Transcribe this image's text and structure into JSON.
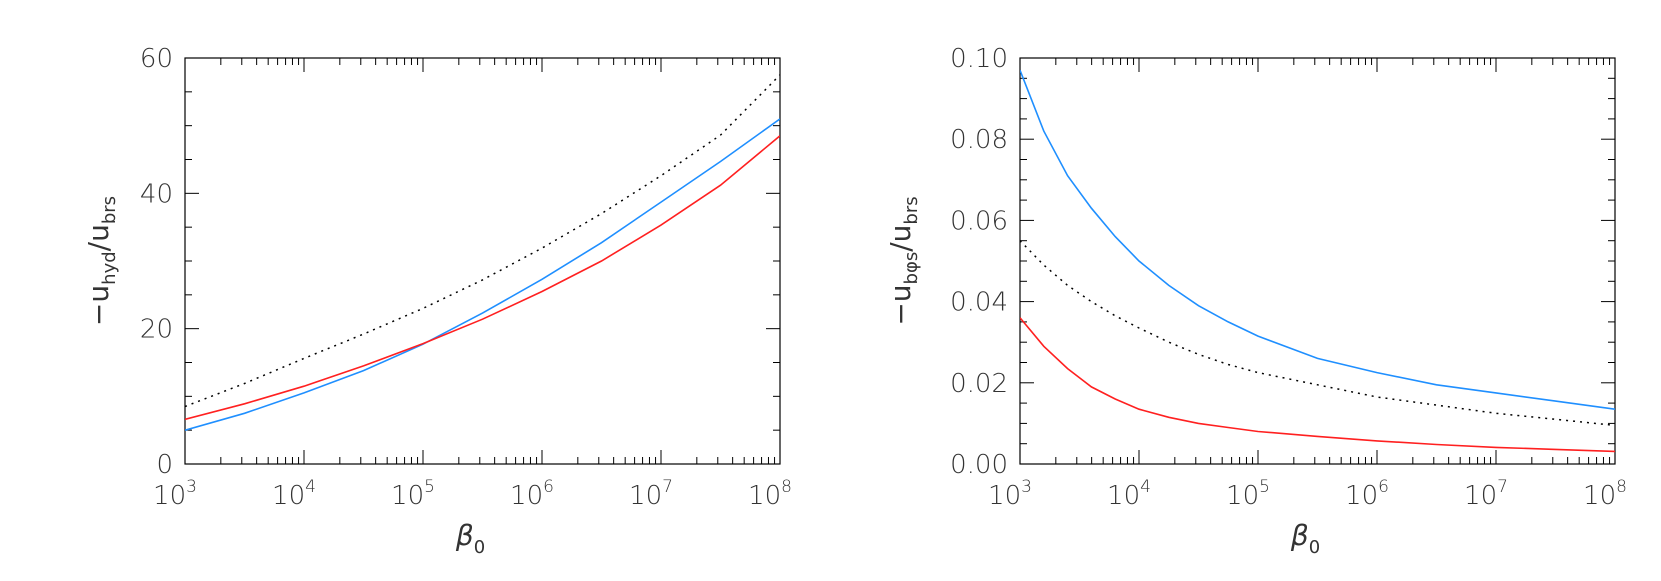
{
  "chart_data": [
    {
      "type": "line",
      "xscale": "log",
      "xlim": [
        1000,
        100000000
      ],
      "ylim": [
        0,
        60
      ],
      "xlabel": "β0",
      "ylabel": "−uhyd/ubrs",
      "x_tick_labels": [
        "10^3",
        "10^4",
        "10^5",
        "10^6",
        "10^7",
        "10^8"
      ],
      "x_tick_bases": [
        "10",
        "10",
        "10",
        "10",
        "10",
        "10"
      ],
      "x_tick_exps": [
        "3",
        "4",
        "5",
        "6",
        "7",
        "8"
      ],
      "y_ticks": [
        0,
        20,
        40,
        60
      ],
      "y_tick_labels": [
        "0",
        "20",
        "40",
        "60"
      ],
      "grid": false,
      "series": [
        {
          "color": "#000000",
          "style": "dotted",
          "x": [
            1000,
            3162,
            10000,
            31623,
            100000,
            316228,
            1000000,
            3162278,
            10000000,
            31622777,
            100000000
          ],
          "values": [
            8.5,
            11.9,
            15.6,
            19.2,
            23.0,
            27.2,
            31.9,
            37.0,
            42.6,
            48.6,
            57.5
          ]
        },
        {
          "color": "#1f8fff",
          "style": "solid",
          "x": [
            1000,
            3162,
            10000,
            31623,
            100000,
            316228,
            1000000,
            3162278,
            10000000,
            31622777,
            100000000
          ],
          "values": [
            5.0,
            7.5,
            10.5,
            13.8,
            17.7,
            22.3,
            27.3,
            32.7,
            38.7,
            44.7,
            51.0
          ]
        },
        {
          "color": "#ff2020",
          "style": "solid",
          "x": [
            1000,
            3162,
            10000,
            31623,
            100000,
            316228,
            1000000,
            3162278,
            10000000,
            31622777,
            100000000
          ],
          "values": [
            6.6,
            8.9,
            11.5,
            14.5,
            17.8,
            21.4,
            25.5,
            30.0,
            35.3,
            41.2,
            48.5
          ]
        }
      ]
    },
    {
      "type": "line",
      "xscale": "log",
      "xlim": [
        1000,
        100000000
      ],
      "ylim": [
        0,
        0.1
      ],
      "xlabel": "β0",
      "ylabel": "−ubφs/ubrs",
      "x_tick_labels": [
        "10^3",
        "10^4",
        "10^5",
        "10^6",
        "10^7",
        "10^8"
      ],
      "x_tick_bases": [
        "10",
        "10",
        "10",
        "10",
        "10",
        "10"
      ],
      "x_tick_exps": [
        "3",
        "4",
        "5",
        "6",
        "7",
        "8"
      ],
      "y_ticks": [
        0,
        0.02,
        0.04,
        0.06,
        0.08,
        0.1
      ],
      "y_tick_labels": [
        "0.00",
        "0.02",
        "0.04",
        "0.06",
        "0.08",
        "0.10"
      ],
      "grid": false,
      "series": [
        {
          "color": "#1f8fff",
          "style": "solid",
          "x": [
            1000,
            1585,
            2512,
            3981,
            6310,
            10000,
            17783,
            31623,
            56234,
            100000,
            316228,
            1000000,
            3162278,
            10000000,
            31622777,
            100000000
          ],
          "values": [
            0.097,
            0.082,
            0.071,
            0.063,
            0.056,
            0.05,
            0.044,
            0.039,
            0.035,
            0.0315,
            0.026,
            0.0225,
            0.0195,
            0.0175,
            0.0155,
            0.0135
          ]
        },
        {
          "color": "#000000",
          "style": "dotted",
          "x": [
            1000,
            1585,
            2512,
            3981,
            6310,
            10000,
            17783,
            31623,
            56234,
            100000,
            316228,
            1000000,
            3162278,
            10000000,
            31622777,
            100000000
          ],
          "values": [
            0.055,
            0.049,
            0.044,
            0.04,
            0.0365,
            0.0335,
            0.03,
            0.027,
            0.0245,
            0.0225,
            0.0195,
            0.0165,
            0.0145,
            0.0125,
            0.011,
            0.0095
          ]
        },
        {
          "color": "#ff2020",
          "style": "solid",
          "x": [
            1000,
            1585,
            2512,
            3981,
            6310,
            10000,
            17783,
            31623,
            56234,
            100000,
            316228,
            1000000,
            3162278,
            10000000,
            31622777,
            100000000
          ],
          "values": [
            0.036,
            0.029,
            0.0235,
            0.019,
            0.016,
            0.0135,
            0.0115,
            0.01,
            0.009,
            0.008,
            0.0068,
            0.0057,
            0.0048,
            0.0041,
            0.0036,
            0.0031
          ]
        }
      ]
    }
  ]
}
